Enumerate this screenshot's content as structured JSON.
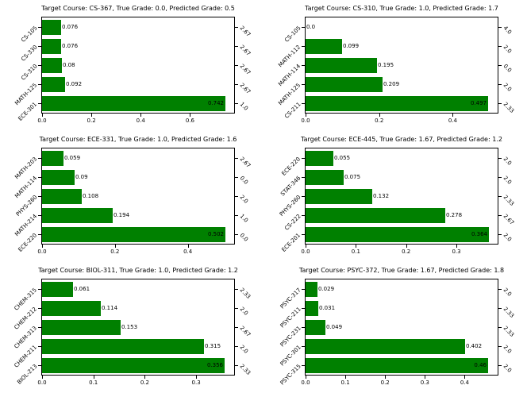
{
  "figure": {
    "background": "#ffffff",
    "bar_color": "#008000",
    "text_color": "#000000",
    "grid": {
      "rows": 3,
      "cols": 2
    }
  },
  "chart_data": [
    {
      "type": "bar",
      "orientation": "horizontal",
      "title": "Target Course: CS-367, True Grade: 0.0, Predicted Grade: 0.5",
      "categories": [
        "CS-105",
        "CS-330",
        "CS-310",
        "MATH-125",
        "ECE-301"
      ],
      "values": [
        0.076,
        0.076,
        0.08,
        0.092,
        0.742
      ],
      "value_labels": [
        "0.076",
        "0.076",
        "0.08",
        "0.092",
        "0.742"
      ],
      "right_axis_labels": [
        "2.67",
        "2.67",
        "2.67",
        "2.67",
        "1.0"
      ],
      "xticks": [
        0.0,
        0.2,
        0.4,
        0.6
      ],
      "xtick_labels": [
        "0.0",
        "0.2",
        "0.4",
        "0.6"
      ],
      "xlim": [
        0,
        0.779
      ],
      "grid": false,
      "legend": null
    },
    {
      "type": "bar",
      "orientation": "horizontal",
      "title": "Target Course: CS-310, True Grade: 1.0, Predicted Grade: 1.7",
      "categories": [
        "CS-105",
        "MATH-112",
        "MATH-114",
        "MATH-125",
        "CS-211"
      ],
      "values": [
        0.0,
        0.099,
        0.195,
        0.209,
        0.497
      ],
      "value_labels": [
        "0.0",
        "0.099",
        "0.195",
        "0.209",
        "0.497"
      ],
      "right_axis_labels": [
        "4.0",
        "2.0",
        "0.0",
        "2.0",
        "2.33"
      ],
      "xticks": [
        0.0,
        0.2,
        0.4
      ],
      "xtick_labels": [
        "0.0",
        "0.2",
        "0.4"
      ],
      "xlim": [
        0,
        0.522
      ],
      "grid": false,
      "legend": null
    },
    {
      "type": "bar",
      "orientation": "horizontal",
      "title": "Target Course: ECE-331, True Grade: 1.0, Predicted Grade: 1.6",
      "categories": [
        "MATH-203",
        "MATH-114",
        "PHYS-260",
        "MATH-214",
        "ECE-220"
      ],
      "values": [
        0.059,
        0.09,
        0.108,
        0.194,
        0.502
      ],
      "value_labels": [
        "0.059",
        "0.09",
        "0.108",
        "0.194",
        "0.502"
      ],
      "right_axis_labels": [
        "2.67",
        "0.0",
        "2.0",
        "1.0",
        "0.0"
      ],
      "xticks": [
        0.0,
        0.2,
        0.4
      ],
      "xtick_labels": [
        "0.0",
        "0.2",
        "0.4"
      ],
      "xlim": [
        0,
        0.527
      ],
      "grid": false,
      "legend": null
    },
    {
      "type": "bar",
      "orientation": "horizontal",
      "title": "Target Course: ECE-445, True Grade: 1.67, Predicted Grade: 1.2",
      "categories": [
        "ECE-220",
        "STAT-346",
        "PHYS-260",
        "CS-222",
        "ECE-201"
      ],
      "values": [
        0.055,
        0.075,
        0.132,
        0.278,
        0.364
      ],
      "value_labels": [
        "0.055",
        "0.075",
        "0.132",
        "0.278",
        "0.364"
      ],
      "right_axis_labels": [
        "2.0",
        "2.0",
        "2.33",
        "2.67",
        "2.0"
      ],
      "xticks": [
        0.0,
        0.1,
        0.2,
        0.3
      ],
      "xtick_labels": [
        "0.0",
        "0.1",
        "0.2",
        "0.3"
      ],
      "xlim": [
        0,
        0.382
      ],
      "grid": false,
      "legend": null
    },
    {
      "type": "bar",
      "orientation": "horizontal",
      "title": "Target Course: BIOL-311, True Grade: 1.0, Predicted Grade: 1.2",
      "categories": [
        "CHEM-315",
        "CHEM-212",
        "CHEM-313",
        "CHEM-211",
        "BIOL-213"
      ],
      "values": [
        0.061,
        0.114,
        0.153,
        0.315,
        0.356
      ],
      "value_labels": [
        "0.061",
        "0.114",
        "0.153",
        "0.315",
        "0.356"
      ],
      "right_axis_labels": [
        "2.33",
        "2.0",
        "2.67",
        "2.0",
        "2.33"
      ],
      "xticks": [
        0.0,
        0.1,
        0.2,
        0.3
      ],
      "xtick_labels": [
        "0.0",
        "0.1",
        "0.2",
        "0.3"
      ],
      "xlim": [
        0,
        0.374
      ],
      "grid": false,
      "legend": null
    },
    {
      "type": "bar",
      "orientation": "horizontal",
      "title": "Target Course: PSYC-372, True Grade: 1.67, Predicted Grade: 1.8",
      "categories": [
        "PSYC-317",
        "PSYC-211",
        "PSYC-231",
        "PSYC-301",
        "PSYC-315"
      ],
      "values": [
        0.029,
        0.031,
        0.049,
        0.402,
        0.46
      ],
      "value_labels": [
        "0.029",
        "0.031",
        "0.049",
        "0.402",
        "0.46"
      ],
      "right_axis_labels": [
        "2.0",
        "2.33",
        "2.33",
        "2.0",
        "2.0"
      ],
      "xticks": [
        0.0,
        0.1,
        0.2,
        0.3,
        0.4
      ],
      "xtick_labels": [
        "0.0",
        "0.1",
        "0.2",
        "0.3",
        "0.4"
      ],
      "xlim": [
        0,
        0.483
      ],
      "grid": false,
      "legend": null
    }
  ]
}
